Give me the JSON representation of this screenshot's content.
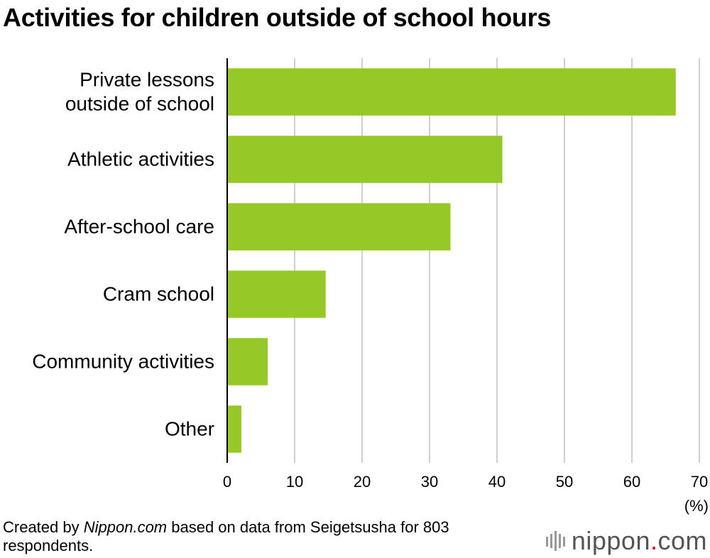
{
  "chart_data": {
    "type": "bar",
    "orientation": "horizontal",
    "title": "Activities for children outside of school hours",
    "categories": [
      [
        "Private lessons",
        "outside of school"
      ],
      [
        "Athletic activities"
      ],
      [
        "After-school care"
      ],
      [
        "Cram school"
      ],
      [
        "Community activities"
      ],
      [
        "Other"
      ]
    ],
    "values": [
      66.5,
      40.8,
      33.1,
      14.6,
      6.0,
      2.1
    ],
    "xlim": [
      0,
      70
    ],
    "xticks": [
      "0",
      "10",
      "20",
      "30",
      "40",
      "50",
      "60",
      "70"
    ],
    "xunit": "(%)",
    "grid": true,
    "bar_color": "#95c926"
  },
  "footer": {
    "prefix": "Created by ",
    "source_name": "Nippon.com",
    "suffix": " based on data from Seigetsusha for 803 respondents."
  },
  "logo": {
    "name": "nippon",
    "dot": ".",
    "tld": "com",
    "accent_color": "#e60012"
  }
}
